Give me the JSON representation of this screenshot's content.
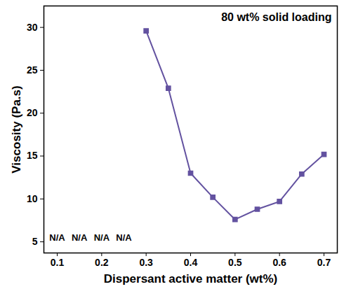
{
  "chart_data": {
    "type": "line",
    "title": "80 wt% solid loading",
    "x_label": "Dispersant active matter (wt%)",
    "y_label": "Viscosity (Pa.s)",
    "x": [
      0.3,
      0.35,
      0.4,
      0.45,
      0.5,
      0.55,
      0.6,
      0.65,
      0.7
    ],
    "values": [
      29.6,
      22.9,
      13.0,
      10.2,
      7.6,
      8.8,
      9.7,
      12.9,
      15.2
    ],
    "color": "#6352a0",
    "marker": "square",
    "line_style": "solid",
    "annotations": [
      {
        "text": "N/A",
        "x": 0.1,
        "y": 5.5
      },
      {
        "text": "N/A",
        "x": 0.15,
        "y": 5.5
      },
      {
        "text": "N/A",
        "x": 0.2,
        "y": 5.5
      },
      {
        "text": "N/A",
        "x": 0.25,
        "y": 5.5
      }
    ],
    "xlim": [
      0.07,
      0.73
    ],
    "ylim": [
      3.7,
      32.5
    ],
    "xticks": [
      0.1,
      0.2,
      0.3,
      0.4,
      0.5,
      0.6,
      0.7
    ],
    "yticks": [
      5,
      10,
      15,
      20,
      25,
      30
    ],
    "grid": false
  }
}
